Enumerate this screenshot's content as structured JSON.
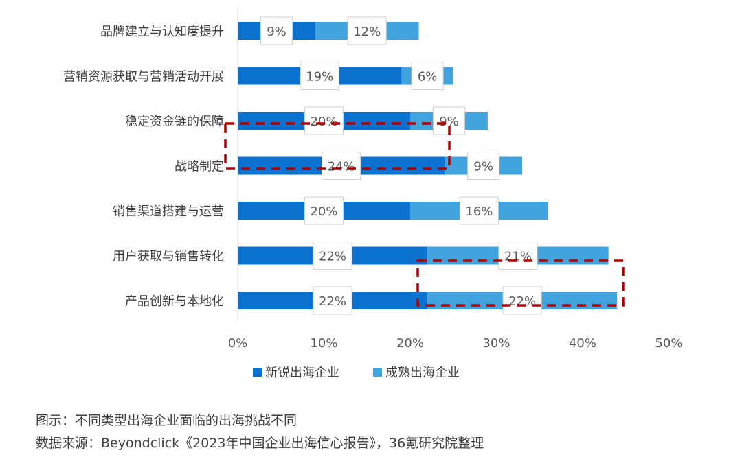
{
  "chart_data": {
    "type": "bar",
    "orientation": "horizontal",
    "stacked": true,
    "categories": [
      "品牌建立与认知度提升",
      "营销资源获取与营销活动开展",
      "稳定资金链的保障",
      "战略制定",
      "销售渠道搭建与运营",
      "用户获取与销售转化",
      "产品创新与本地化"
    ],
    "series": [
      {
        "name": "新锐出海企业",
        "values": [
          9,
          19,
          20,
          24,
          20,
          22,
          22
        ],
        "color": "#0b72d0"
      },
      {
        "name": "成熟出海企业",
        "values": [
          12,
          6,
          9,
          9,
          16,
          21,
          22
        ],
        "color": "#41a4df"
      }
    ],
    "data_labels": [
      [
        "9%",
        "12%"
      ],
      [
        "19%",
        "6%"
      ],
      [
        "20%",
        "9%"
      ],
      [
        "24%",
        "9%"
      ],
      [
        "20%",
        "16%"
      ],
      [
        "22%",
        "21%"
      ],
      [
        "22%",
        "22%"
      ]
    ],
    "x_ticks": [
      "0%",
      "10%",
      "20%",
      "30%",
      "40%",
      "50%"
    ],
    "xlim": [
      0,
      50
    ],
    "grid": false,
    "legend_position": "bottom",
    "highlights": [
      {
        "categories": [
          "稳定资金链的保障",
          "战略制定"
        ],
        "series": "新锐出海企业",
        "style": "dashed",
        "color": "#b00000"
      },
      {
        "categories": [
          "用户获取与销售转化",
          "产品创新与本地化"
        ],
        "series": "成熟出海企业",
        "style": "dashed",
        "color": "#b00000"
      }
    ]
  },
  "notes": {
    "caption": "图示：不同类型出海企业面临的出海挑战不同",
    "source": "数据来源：Beyondclick《2023年中国企业出海信心报告》，36氪研究院整理"
  }
}
